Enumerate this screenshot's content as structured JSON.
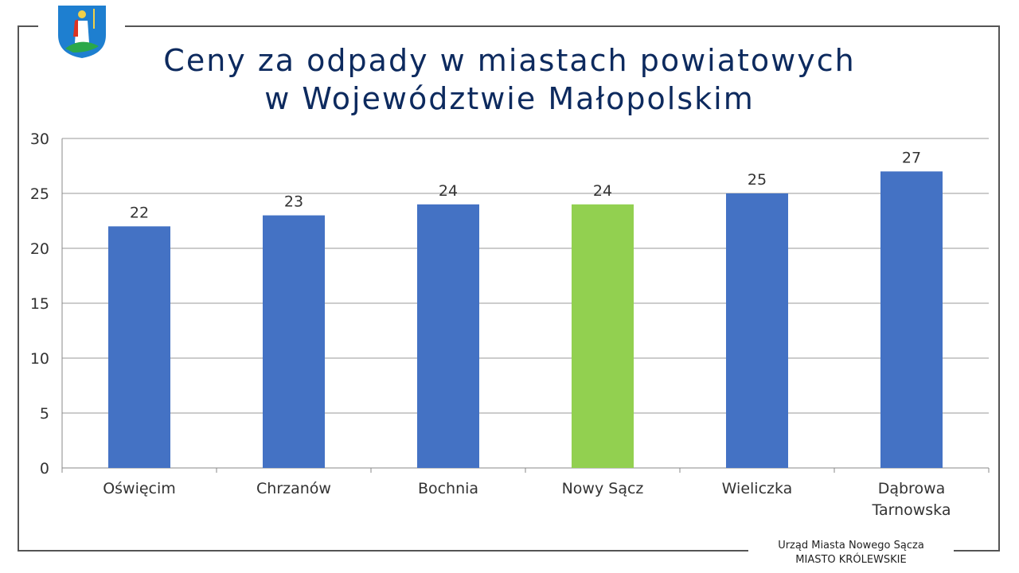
{
  "title_lines": [
    "Ceny za odpady w miastach powiatowych",
    "w Województwie Małopolskim"
  ],
  "footer": {
    "line1": "Urząd Miasta Nowego Sącza",
    "line2": "MIASTO KRÓLEWSKIE"
  },
  "colors": {
    "bar": "#4472c4",
    "highlight": "#92d050",
    "title": "#0d2a5e"
  },
  "chart_data": {
    "type": "bar",
    "title": "Ceny za odpady w miastach powiatowych w Województwie Małopolskim",
    "categories": [
      [
        "Oświęcim"
      ],
      [
        "Chrzanów"
      ],
      [
        "Bochnia"
      ],
      [
        "Nowy Sącz"
      ],
      [
        "Wieliczka"
      ],
      [
        "Dąbrowa",
        "Tarnowska"
      ]
    ],
    "values": [
      22,
      23,
      24,
      24,
      25,
      27
    ],
    "highlight_index": 3,
    "ylim": [
      0,
      30
    ],
    "yticks": [
      0,
      5,
      10,
      15,
      20,
      25,
      30
    ],
    "grid": true,
    "xlabel": "",
    "ylabel": ""
  }
}
